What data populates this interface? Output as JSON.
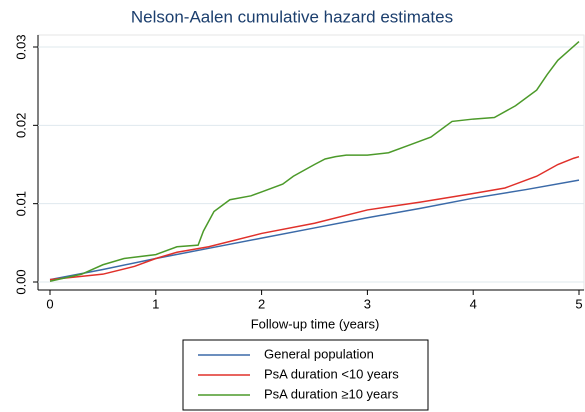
{
  "chart_data": {
    "type": "line",
    "title": "Nelson-Aalen cumulative hazard estimates",
    "x_label": "Follow-up time (years)",
    "xlim": [
      0,
      5
    ],
    "xticks": [
      0,
      1,
      2,
      3,
      4,
      5
    ],
    "ylim": [
      0,
      0.03
    ],
    "yticks": [
      {
        "value": 0,
        "label": "0.00"
      },
      0.01,
      0.02,
      0.03
    ],
    "grid": true,
    "series": [
      {
        "name": "General population",
        "color": "#3b6aa8",
        "x": [
          0,
          0.5,
          1,
          1.5,
          2,
          2.5,
          3,
          3.5,
          4,
          4.5,
          5
        ],
        "values": [
          0.0003,
          0.0016,
          0.003,
          0.0043,
          0.0056,
          0.0069,
          0.0082,
          0.0094,
          0.0107,
          0.0118,
          0.013
        ]
      },
      {
        "name": "PsA duration <10 years",
        "color": "#e0302a",
        "x": [
          0,
          0.5,
          0.8,
          1,
          1.2,
          1.5,
          2,
          2.5,
          3,
          3.5,
          4,
          4.3,
          4.6,
          4.8,
          4.95,
          5
        ],
        "values": [
          0.0003,
          0.001,
          0.002,
          0.003,
          0.0038,
          0.0045,
          0.0062,
          0.0075,
          0.0092,
          0.0102,
          0.0113,
          0.012,
          0.0135,
          0.015,
          0.0158,
          0.016
        ]
      },
      {
        "name": "PsA duration ≥10 years",
        "color": "#4c9a2a",
        "x": [
          0,
          0.3,
          0.5,
          0.7,
          1,
          1.2,
          1.4,
          1.45,
          1.55,
          1.7,
          1.9,
          2,
          2.2,
          2.3,
          2.5,
          2.6,
          2.7,
          2.8,
          3,
          3.2,
          3.4,
          3.6,
          3.8,
          4,
          4.2,
          4.4,
          4.6,
          4.7,
          4.8,
          4.9,
          5
        ],
        "values": [
          0.0001,
          0.001,
          0.0022,
          0.003,
          0.0035,
          0.0045,
          0.0047,
          0.0065,
          0.009,
          0.0105,
          0.011,
          0.0115,
          0.0125,
          0.0135,
          0.015,
          0.0157,
          0.016,
          0.0162,
          0.0162,
          0.0165,
          0.0175,
          0.0185,
          0.0205,
          0.0208,
          0.021,
          0.0225,
          0.0245,
          0.0265,
          0.0283,
          0.0295,
          0.0307
        ]
      }
    ]
  }
}
